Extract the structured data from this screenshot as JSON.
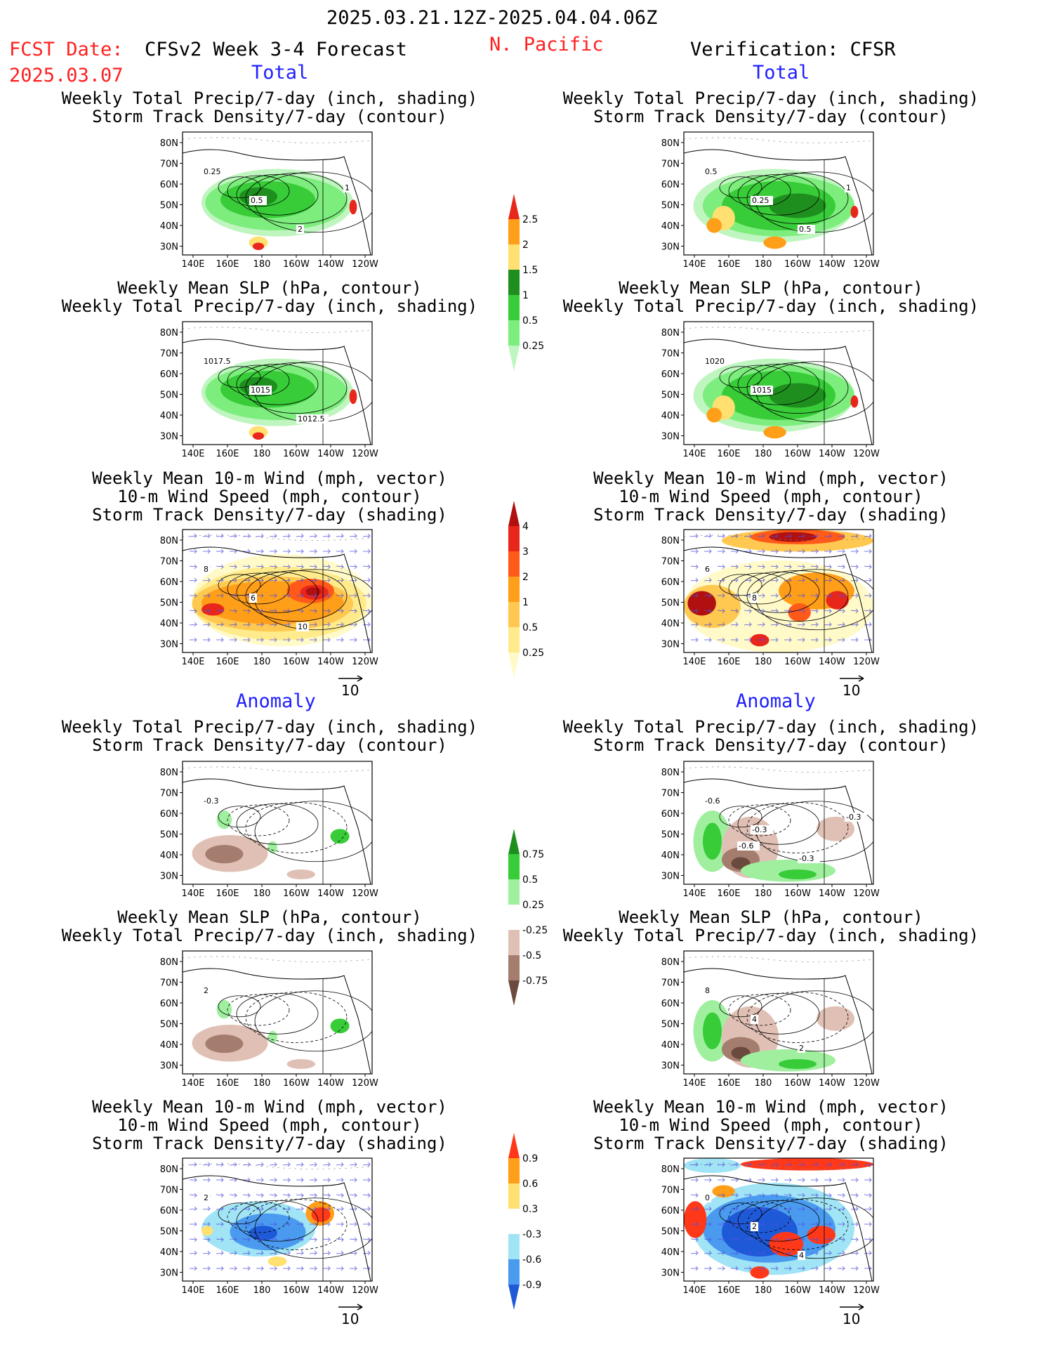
{
  "header": {
    "date_range": "2025.03.21.12Z-2025.04.04.06Z",
    "fcst_label": "FCST Date:",
    "fcst_date": "2025.03.07",
    "forecast_title": "CFSv2 Week 3-4 Forecast",
    "region": "N. Pacific",
    "verification": "Verification: CFSR"
  },
  "section_labels": {
    "total": "Total",
    "anomaly": "Anomaly"
  },
  "axes": {
    "lat_labels": [
      "80N",
      "70N",
      "60N",
      "50N",
      "40N",
      "30N"
    ],
    "lon_labels": [
      "140E",
      "160E",
      "180",
      "160W",
      "140W",
      "120W"
    ]
  },
  "vector_ref": "10",
  "panels": [
    {
      "id": "fc-total-precip",
      "title": [
        "Weekly Total Precip/7-day (inch, shading)",
        "Storm Track Density/7-day (contour)"
      ],
      "labels": [
        "0.25",
        "0.5",
        "2",
        "1"
      ]
    },
    {
      "id": "vf-total-precip",
      "title": [
        "Weekly Total Precip/7-day (inch, shading)",
        "Storm Track Density/7-day (contour)"
      ],
      "labels": [
        "0.5",
        "0.25",
        "0.5",
        "1"
      ]
    },
    {
      "id": "fc-total-slp",
      "title": [
        "Weekly Mean SLP (hPa, contour)",
        "Weekly Total Precip/7-day (inch, shading)"
      ],
      "labels": [
        "1017.5",
        "1015",
        "1012.5"
      ]
    },
    {
      "id": "vf-total-slp",
      "title": [
        "Weekly Mean SLP (hPa, contour)",
        "Weekly Total Precip/7-day (inch, shading)"
      ],
      "labels": [
        "1020",
        "1015"
      ]
    },
    {
      "id": "fc-total-wind",
      "title": [
        "Weekly Mean 10-m Wind (mph, vector)",
        "10-m Wind Speed (mph, contour)",
        "Storm Track Density/7-day (shading)"
      ],
      "labels": [
        "8",
        "6",
        "10"
      ]
    },
    {
      "id": "vf-total-wind",
      "title": [
        "Weekly Mean 10-m Wind (mph, vector)",
        "10-m Wind Speed (mph, contour)",
        "Storm Track Density/7-day (shading)"
      ],
      "labels": [
        "6",
        "8"
      ]
    },
    {
      "id": "fc-anom-precip",
      "title": [
        "Weekly Total Precip/7-day (inch, shading)",
        "Storm Track Density/7-day (contour)"
      ],
      "labels": [
        "-0.3"
      ]
    },
    {
      "id": "vf-anom-precip",
      "title": [
        "Weekly Total Precip/7-day (inch, shading)",
        "Storm Track Density/7-day (contour)"
      ],
      "labels": [
        "-0.6",
        "-0.3",
        "-0.3",
        "-0.3",
        "-0.6"
      ]
    },
    {
      "id": "fc-anom-slp",
      "title": [
        "Weekly Mean SLP (hPa, contour)",
        "Weekly Total Precip/7-day (inch, shading)"
      ],
      "labels": [
        "2"
      ]
    },
    {
      "id": "vf-anom-slp",
      "title": [
        "Weekly Mean SLP (hPa, contour)",
        "Weekly Total Precip/7-day (inch, shading)"
      ],
      "labels": [
        "8",
        "4",
        "2"
      ]
    },
    {
      "id": "fc-anom-wind",
      "title": [
        "Weekly Mean 10-m Wind (mph, vector)",
        "10-m Wind Speed (mph, contour)",
        "Storm Track Density/7-day (shading)"
      ],
      "labels": [
        "2"
      ]
    },
    {
      "id": "vf-anom-wind",
      "title": [
        "Weekly Mean 10-m Wind (mph, vector)",
        "10-m Wind Speed (mph, contour)",
        "Storm Track Density/7-day (shading)"
      ],
      "labels": [
        "0",
        "2",
        "4"
      ]
    }
  ],
  "colorbars": [
    {
      "id": "cb-total-precip",
      "labels": [
        "2.5",
        "2",
        "1.5",
        "1",
        "0.5",
        "0.25"
      ],
      "colors": [
        "#e8261c",
        "#ff9e19",
        "#ffe070",
        "#1e8f1e",
        "#38cc38",
        "#7ded7d",
        "#bff5bf"
      ]
    },
    {
      "id": "cb-total-storm",
      "labels": [
        "4",
        "3",
        "2",
        "1",
        "0.5",
        "0.25"
      ],
      "colors": [
        "#b01010",
        "#e8261c",
        "#ff5a19",
        "#ff9e19",
        "#ffc850",
        "#ffeb8c",
        "#fffac8"
      ]
    },
    {
      "id": "cb-anom-precip",
      "labels": [
        "0.75",
        "0.5",
        "0.25",
        "-0.25",
        "-0.5",
        "-0.75"
      ],
      "colors": [
        "#1e8f1e",
        "#38cc38",
        "#9fef9f",
        "#ffffff",
        "#e0c0b5",
        "#a57d6e",
        "#6b4a3e"
      ]
    },
    {
      "id": "cb-anom-storm",
      "labels": [
        "0.9",
        "0.6",
        "0.3",
        "-0.3",
        "-0.6",
        "-0.9"
      ],
      "colors": [
        "#ff3819",
        "#ff9e19",
        "#ffe070",
        "#ffffff",
        "#a0e4f5",
        "#4a9bf0",
        "#1e5ad8"
      ]
    }
  ]
}
